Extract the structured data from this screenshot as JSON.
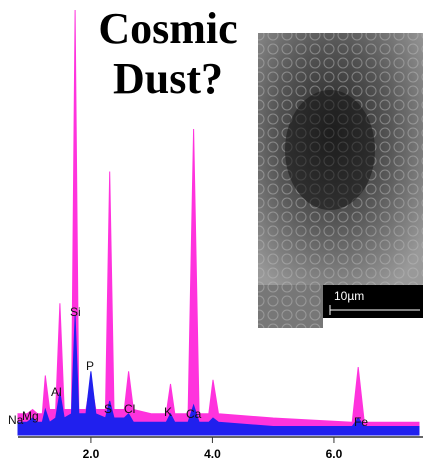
{
  "chart_data": {
    "type": "area",
    "title": "Cosmic Dust?",
    "inset_scale_label": "10µm",
    "x": [
      0.8,
      0.95,
      1.04,
      1.12,
      1.2,
      1.25,
      1.32,
      1.42,
      1.49,
      1.56,
      1.68,
      1.74,
      1.8,
      1.92,
      2.0,
      2.08,
      2.24,
      2.31,
      2.38,
      2.55,
      2.62,
      2.7,
      3.0,
      3.24,
      3.31,
      3.38,
      3.6,
      3.69,
      3.78,
      3.94,
      4.01,
      4.1,
      5.0,
      6.3,
      6.4,
      6.5,
      7.4
    ],
    "series": [
      {
        "color": "#ff33dd",
        "values": [
          5,
          5,
          6,
          5,
          5,
          14,
          6,
          6,
          31,
          6,
          6,
          100,
          6,
          6,
          13,
          6,
          6,
          62,
          6,
          6,
          15,
          6,
          5,
          5,
          12,
          5,
          5,
          72,
          5,
          5,
          13,
          5,
          4,
          3,
          16,
          3,
          3
        ]
      },
      {
        "color": "#2020ee",
        "values": [
          3,
          3,
          4,
          3,
          3,
          6,
          3,
          4,
          10,
          4,
          5,
          28,
          5,
          5,
          15,
          5,
          4,
          8,
          4,
          4,
          5,
          3,
          3,
          3,
          5,
          3,
          3,
          7,
          3,
          3,
          4,
          3,
          2,
          2,
          4,
          2,
          2
        ]
      }
    ],
    "annotations": [
      "Na",
      "Mg",
      "Al",
      "Si",
      "P",
      "S",
      "Cl",
      "K",
      "Ca",
      "Fe"
    ],
    "xlim": [
      0.8,
      7.4
    ],
    "ylim": [
      0,
      100
    ],
    "xticks": [
      {
        "value": 2,
        "label": "2.0"
      },
      {
        "value": 4,
        "label": "4.0"
      },
      {
        "value": 6,
        "label": "6.0"
      }
    ]
  }
}
